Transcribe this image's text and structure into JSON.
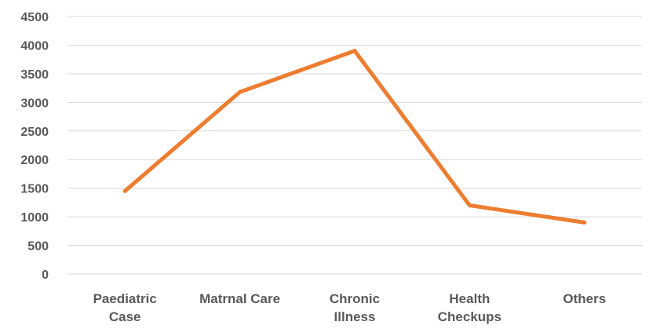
{
  "chart_data": {
    "type": "line",
    "title": "",
    "xlabel": "",
    "ylabel": "",
    "categories": [
      [
        "Paediatric",
        "Case"
      ],
      [
        "Matrnal Care"
      ],
      [
        "Chronic",
        "Illness"
      ],
      [
        "Health",
        "Checkups"
      ],
      [
        "Others"
      ]
    ],
    "series": [
      {
        "values": [
          1450,
          3180,
          3900,
          1200,
          900
        ],
        "color": "#ed7d31"
      }
    ],
    "ylim": [
      0,
      4500
    ],
    "yticks": [
      0,
      500,
      1000,
      1500,
      2000,
      2500,
      3000,
      3500,
      4000,
      4500
    ],
    "grid": true,
    "legend": "none"
  }
}
